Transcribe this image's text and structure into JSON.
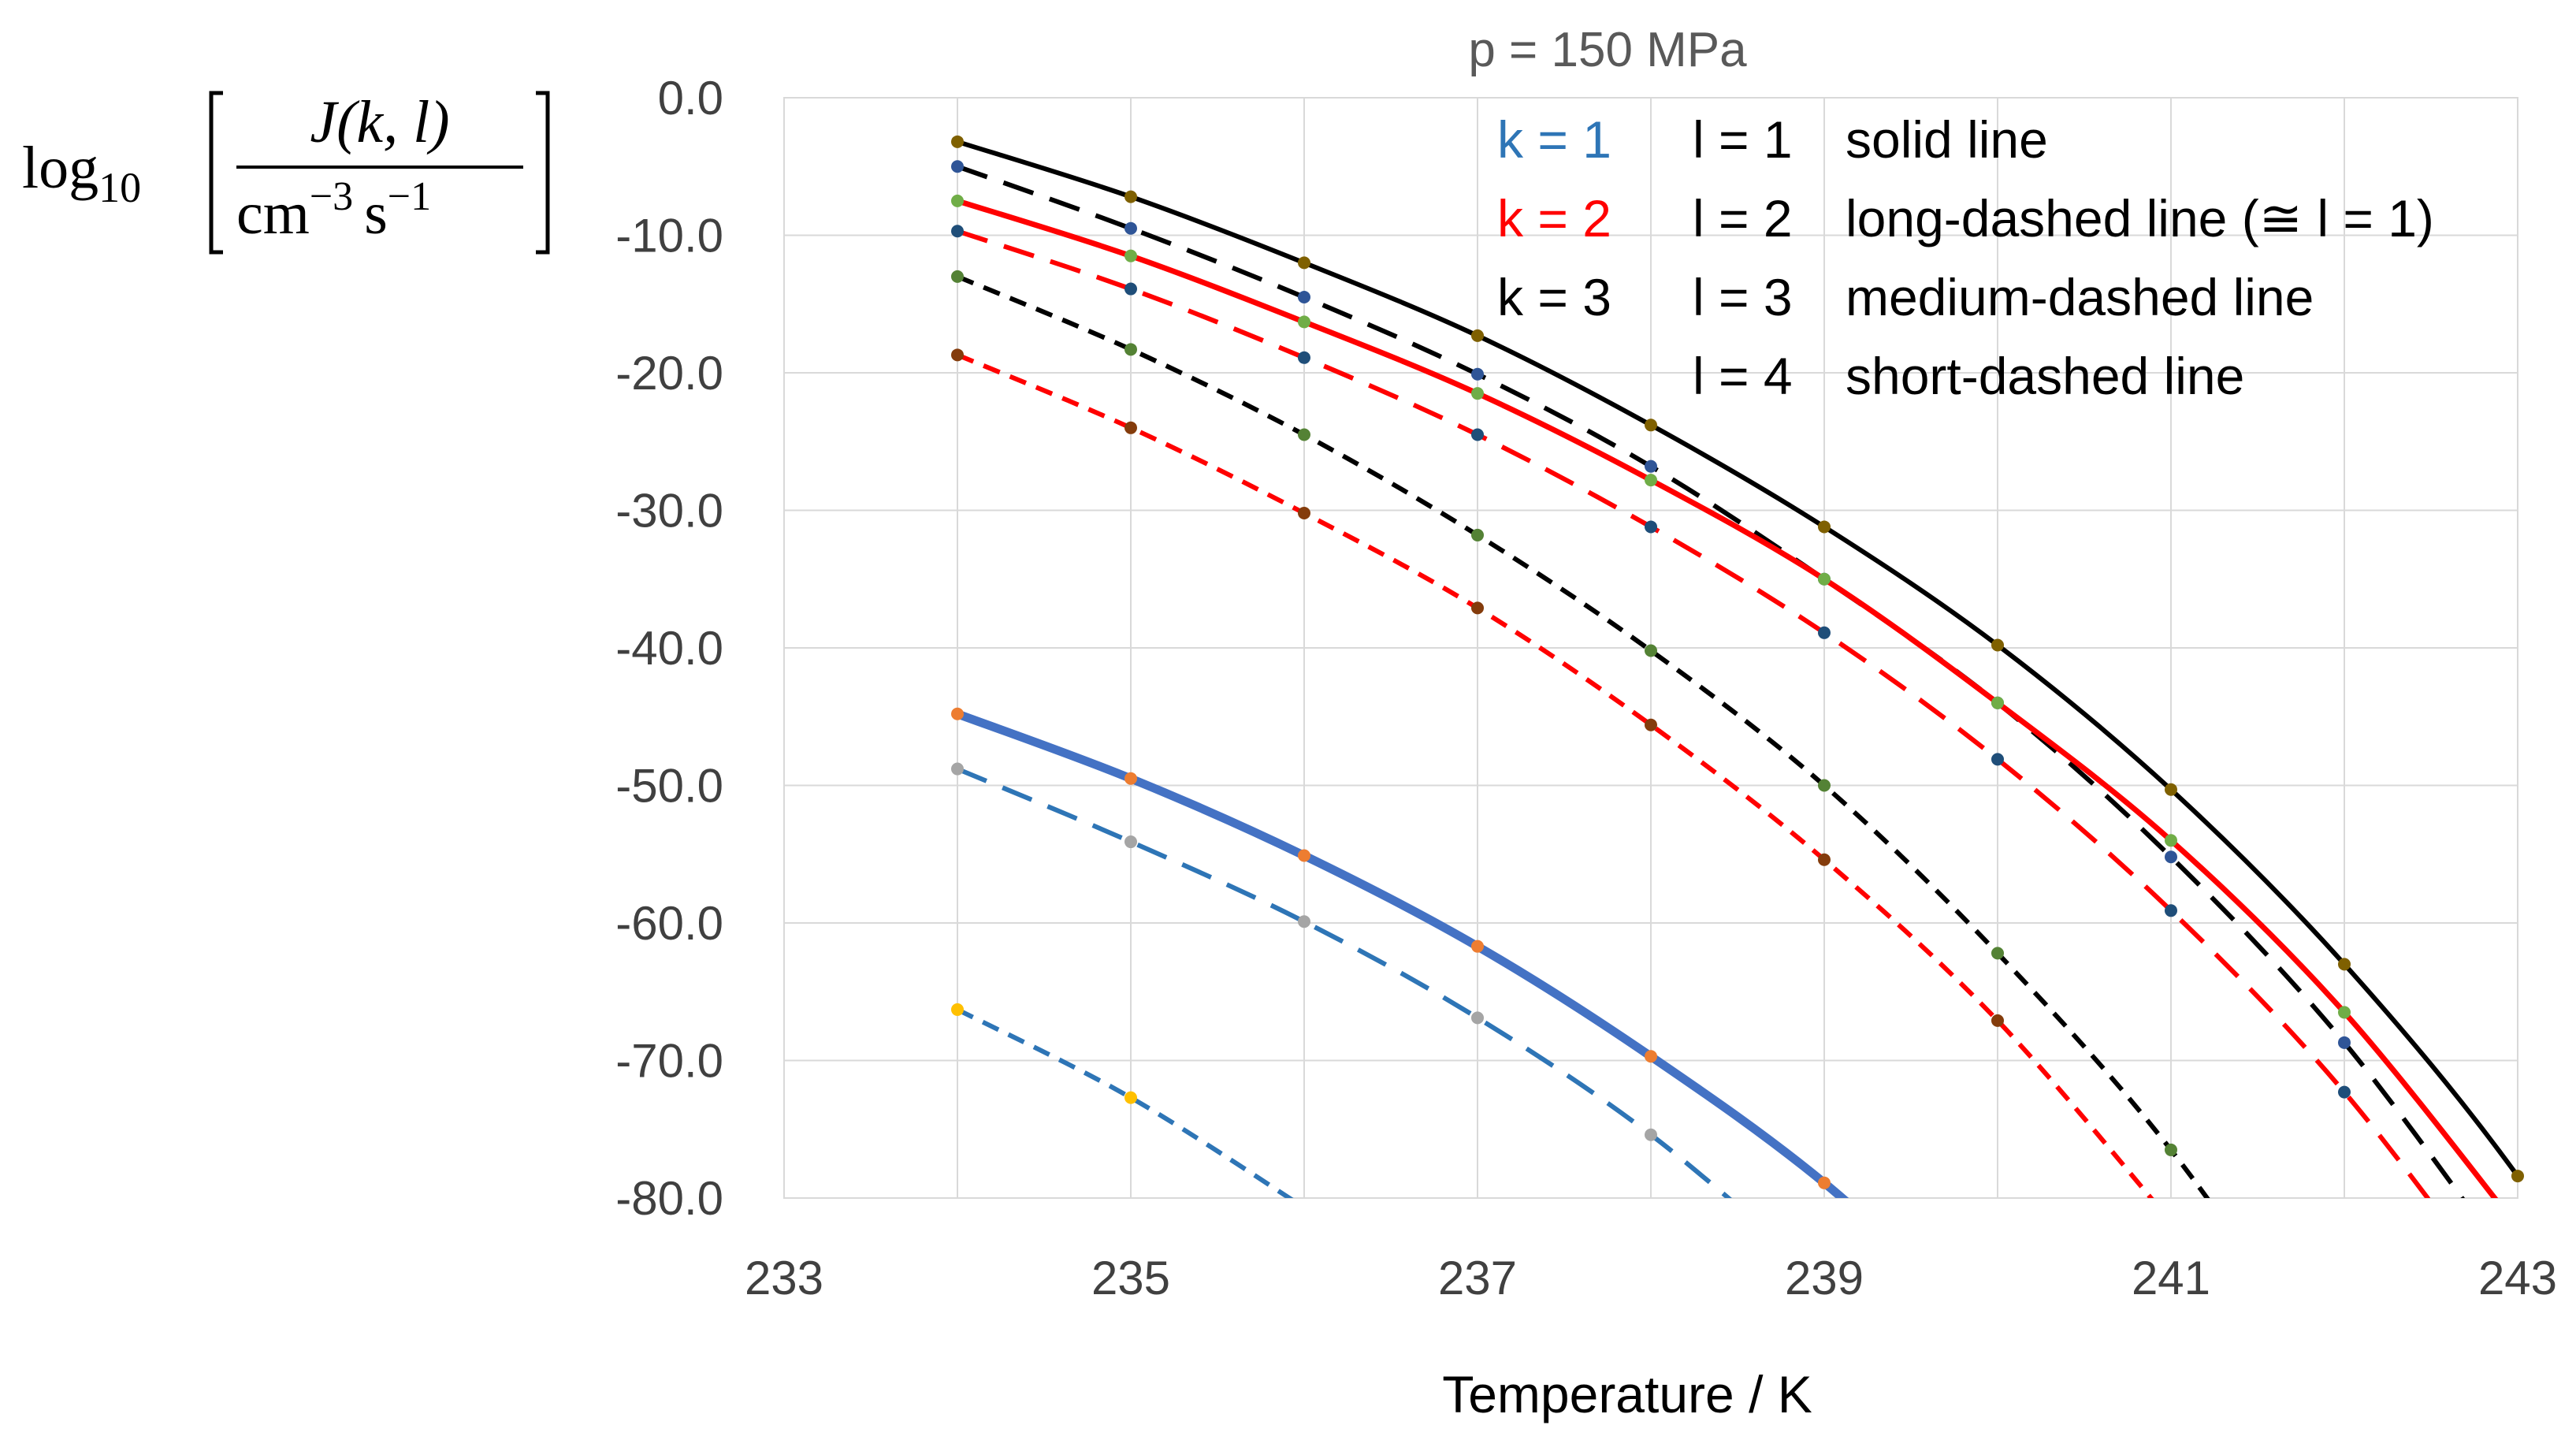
{
  "chart_data": {
    "type": "line",
    "title": "p = 150 MPa",
    "xlabel": "Temperature / K",
    "ylabel": {
      "prefix": "log",
      "prefix_sub": "10",
      "numerator": "J(k, l)",
      "denominator": "cm",
      "denominator_exp1": "−3",
      "denominator_unit2": "s",
      "denominator_exp2": "−1"
    },
    "xlim": [
      233,
      243
    ],
    "ylim": [
      -80,
      0
    ],
    "grid": true,
    "x_ticks": [
      233,
      235,
      237,
      239,
      241,
      243
    ],
    "x_tick_labels": [
      "233",
      "235",
      "237",
      "239",
      "241",
      "243"
    ],
    "y_ticks": [
      0,
      -10,
      -20,
      -30,
      -40,
      -50,
      -60,
      -70,
      -80
    ],
    "y_tick_labels": [
      "0.0",
      "-10.0",
      "-20.0",
      "-30.0",
      "-40.0",
      "-50.0",
      "-60.0",
      "-70.0",
      "-80.0"
    ],
    "legend": {
      "position": "top-right",
      "rows": [
        {
          "k": "k = 1",
          "k_color": "#2e75b6",
          "l": "l = 1",
          "desc": "solid line"
        },
        {
          "k": "k = 2",
          "k_color": "#ff0000",
          "l": "l = 2",
          "desc": "long-dashed line (≅ l = 1)"
        },
        {
          "k": "k = 3",
          "k_color": "#000000",
          "l": "l = 3",
          "desc": "medium-dashed line"
        },
        {
          "k": "",
          "k_color": "#000000",
          "l": "l = 4",
          "desc": "short-dashed line"
        }
      ]
    },
    "series": [
      {
        "name": "k=3, l=1",
        "k": 3,
        "l": 1,
        "style": "solid",
        "color": "#000000",
        "width": 6,
        "marker_color": "#7f6000",
        "x": [
          234,
          235,
          236,
          237,
          238,
          239,
          240,
          241,
          242,
          243
        ],
        "y": [
          -3.2,
          -7.2,
          -12.0,
          -17.3,
          -23.8,
          -31.2,
          -39.8,
          -50.3,
          -63.0,
          -78.4
        ]
      },
      {
        "name": "k=3, l=2",
        "k": 3,
        "l": 2,
        "style": "long-dashed",
        "color": "#000000",
        "width": 6,
        "marker_color": "#2f5597",
        "x": [
          234,
          235,
          236,
          237,
          238,
          239,
          240,
          241,
          242
        ],
        "y": [
          -5.0,
          -9.5,
          -14.5,
          -20.1,
          -26.8,
          -35.0,
          -44.0,
          -55.2,
          -68.7
        ]
      },
      {
        "name": "k=3, l=3",
        "k": 3,
        "l": 3,
        "style": "medium-dashed",
        "color": "#000000",
        "width": 6,
        "marker_color": "#548235",
        "x": [
          234,
          235,
          236,
          237,
          238,
          239,
          240,
          241
        ],
        "y": [
          -13.0,
          -18.3,
          -24.5,
          -31.8,
          -40.2,
          -50.0,
          -62.2,
          -76.5
        ]
      },
      {
        "name": "k=2, l=1",
        "k": 2,
        "l": 1,
        "style": "solid",
        "color": "#ff0000",
        "width": 7,
        "marker_color": "#70ad47",
        "x": [
          234,
          235,
          236,
          237,
          238,
          239,
          240,
          241,
          242
        ],
        "y": [
          -7.5,
          -11.5,
          -16.3,
          -21.5,
          -27.8,
          -35.0,
          -44.0,
          -54.0,
          -66.5
        ]
      },
      {
        "name": "k=2, l=2",
        "k": 2,
        "l": 2,
        "style": "long-dashed",
        "color": "#ff0000",
        "width": 6,
        "marker_color": "#1f4e79",
        "x": [
          234,
          235,
          236,
          237,
          238,
          239,
          240,
          241,
          242
        ],
        "y": [
          -9.7,
          -13.9,
          -18.9,
          -24.5,
          -31.2,
          -38.9,
          -48.1,
          -59.1,
          -72.3
        ]
      },
      {
        "name": "k=2, l=3",
        "k": 2,
        "l": 3,
        "style": "medium-dashed",
        "color": "#ff0000",
        "width": 6,
        "marker_color": "#843c0c",
        "x": [
          234,
          235,
          236,
          237,
          238,
          239,
          240
        ],
        "y": [
          -18.7,
          -24.0,
          -30.2,
          -37.1,
          -45.6,
          -55.4,
          -67.1
        ]
      },
      {
        "name": "k=1, l=1",
        "k": 1,
        "l": 1,
        "style": "solid",
        "color": "#4472c4",
        "width": 11,
        "marker_color": "#ed7d31",
        "x": [
          234,
          235,
          236,
          237,
          238,
          239
        ],
        "y": [
          -44.8,
          -49.5,
          -55.1,
          -61.7,
          -69.7,
          -78.9
        ]
      },
      {
        "name": "k=1, l=2",
        "k": 1,
        "l": 2,
        "style": "long-dashed",
        "color": "#2e75b6",
        "width": 6,
        "marker_color": "#a5a5a5",
        "x": [
          234,
          235,
          236,
          237,
          238
        ],
        "y": [
          -48.8,
          -54.1,
          -59.9,
          -66.9,
          -75.4
        ]
      },
      {
        "name": "k=1, l=3",
        "k": 1,
        "l": 3,
        "style": "medium-dashed",
        "color": "#2e75b6",
        "width": 6,
        "marker_color": "#ffc000",
        "x": [
          234,
          235
        ],
        "y": [
          -66.3,
          -72.7
        ]
      }
    ]
  }
}
